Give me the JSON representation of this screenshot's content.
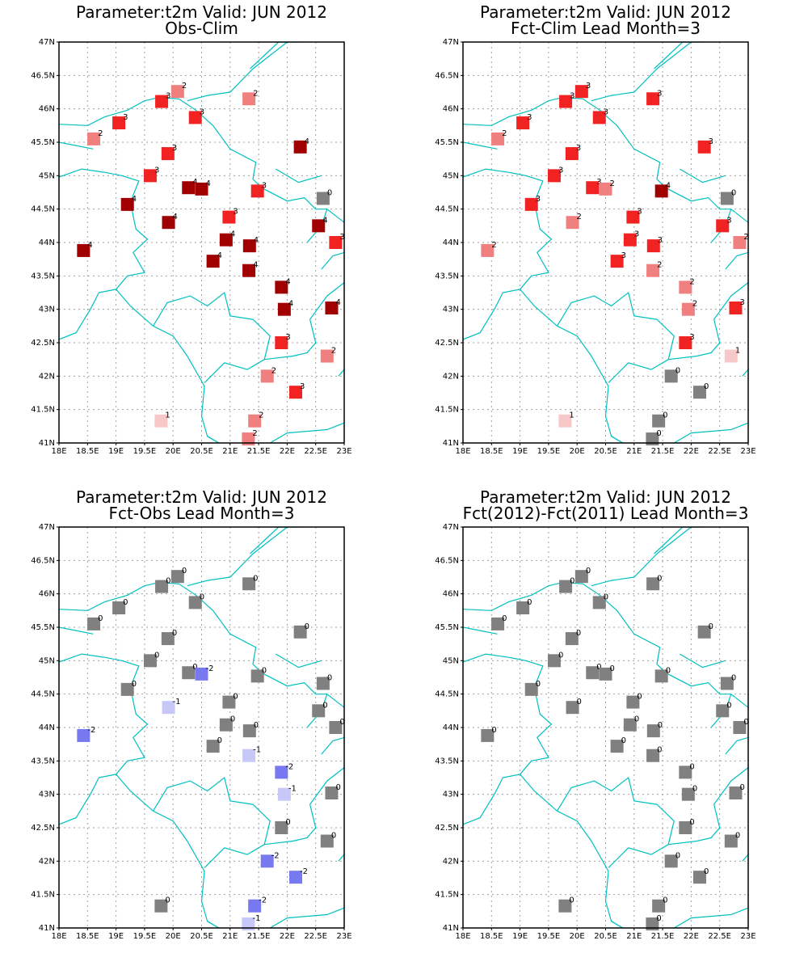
{
  "panels": [
    {
      "id": "obs-clim",
      "title_line1": "Parameter:t2m Valid: JUN 2012",
      "title_line2": "Obs-Clim",
      "stations": [
        {
          "lon": 18.43,
          "lat": 43.88,
          "v": 4
        },
        {
          "lon": 18.61,
          "lat": 45.55,
          "v": 2
        },
        {
          "lon": 19.05,
          "lat": 45.79,
          "v": 3
        },
        {
          "lon": 19.2,
          "lat": 44.57,
          "v": 4
        },
        {
          "lon": 19.6,
          "lat": 45.0,
          "v": 3
        },
        {
          "lon": 19.8,
          "lat": 46.11,
          "v": 3
        },
        {
          "lon": 19.79,
          "lat": 41.33,
          "v": 1
        },
        {
          "lon": 19.91,
          "lat": 45.33,
          "v": 3
        },
        {
          "lon": 19.92,
          "lat": 44.3,
          "v": 4
        },
        {
          "lon": 20.08,
          "lat": 46.26,
          "v": 2
        },
        {
          "lon": 20.27,
          "lat": 44.82,
          "v": 4
        },
        {
          "lon": 20.39,
          "lat": 45.87,
          "v": 3
        },
        {
          "lon": 20.5,
          "lat": 44.8,
          "v": 4
        },
        {
          "lon": 20.7,
          "lat": 43.72,
          "v": 4
        },
        {
          "lon": 20.93,
          "lat": 44.04,
          "v": 4
        },
        {
          "lon": 20.98,
          "lat": 44.38,
          "v": 3
        },
        {
          "lon": 21.33,
          "lat": 46.15,
          "v": 2
        },
        {
          "lon": 21.33,
          "lat": 43.58,
          "v": 4
        },
        {
          "lon": 21.32,
          "lat": 41.06,
          "v": 2
        },
        {
          "lon": 21.34,
          "lat": 43.95,
          "v": 4
        },
        {
          "lon": 21.43,
          "lat": 41.33,
          "v": 2
        },
        {
          "lon": 21.48,
          "lat": 44.77,
          "v": 3
        },
        {
          "lon": 21.65,
          "lat": 42.0,
          "v": 2
        },
        {
          "lon": 21.9,
          "lat": 42.5,
          "v": 3
        },
        {
          "lon": 21.9,
          "lat": 43.33,
          "v": 4
        },
        {
          "lon": 21.95,
          "lat": 43.0,
          "v": 4
        },
        {
          "lon": 22.15,
          "lat": 41.76,
          "v": 3
        },
        {
          "lon": 22.23,
          "lat": 45.43,
          "v": 4
        },
        {
          "lon": 22.55,
          "lat": 44.25,
          "v": 4
        },
        {
          "lon": 22.63,
          "lat": 44.66,
          "v": 0
        },
        {
          "lon": 22.7,
          "lat": 42.3,
          "v": 2
        },
        {
          "lon": 22.78,
          "lat": 43.02,
          "v": 4
        },
        {
          "lon": 22.85,
          "lat": 44.0,
          "v": 3
        }
      ]
    },
    {
      "id": "fct-clim",
      "title_line1": "Parameter:t2m Valid: JUN 2012",
      "title_line2": "Fct-Clim Lead Month=3",
      "stations": [
        {
          "lon": 18.43,
          "lat": 43.88,
          "v": 2
        },
        {
          "lon": 18.61,
          "lat": 45.55,
          "v": 2
        },
        {
          "lon": 19.05,
          "lat": 45.79,
          "v": 3
        },
        {
          "lon": 19.2,
          "lat": 44.57,
          "v": 3
        },
        {
          "lon": 19.6,
          "lat": 45.0,
          "v": 3
        },
        {
          "lon": 19.8,
          "lat": 46.11,
          "v": 3
        },
        {
          "lon": 19.79,
          "lat": 41.33,
          "v": 1
        },
        {
          "lon": 19.91,
          "lat": 45.33,
          "v": 3
        },
        {
          "lon": 19.92,
          "lat": 44.3,
          "v": 2
        },
        {
          "lon": 20.08,
          "lat": 46.26,
          "v": 3
        },
        {
          "lon": 20.27,
          "lat": 44.82,
          "v": 3
        },
        {
          "lon": 20.39,
          "lat": 45.87,
          "v": 3
        },
        {
          "lon": 20.5,
          "lat": 44.8,
          "v": 2
        },
        {
          "lon": 20.7,
          "lat": 43.72,
          "v": 3
        },
        {
          "lon": 20.93,
          "lat": 44.04,
          "v": 3
        },
        {
          "lon": 20.98,
          "lat": 44.38,
          "v": 3
        },
        {
          "lon": 21.33,
          "lat": 46.15,
          "v": 3
        },
        {
          "lon": 21.33,
          "lat": 43.58,
          "v": 2
        },
        {
          "lon": 21.32,
          "lat": 41.06,
          "v": 0
        },
        {
          "lon": 21.34,
          "lat": 43.95,
          "v": 3
        },
        {
          "lon": 21.43,
          "lat": 41.33,
          "v": 0
        },
        {
          "lon": 21.48,
          "lat": 44.77,
          "v": 4
        },
        {
          "lon": 21.65,
          "lat": 42.0,
          "v": 0
        },
        {
          "lon": 21.9,
          "lat": 42.5,
          "v": 3
        },
        {
          "lon": 21.9,
          "lat": 43.33,
          "v": 2
        },
        {
          "lon": 21.95,
          "lat": 43.0,
          "v": 2
        },
        {
          "lon": 22.15,
          "lat": 41.76,
          "v": 0
        },
        {
          "lon": 22.23,
          "lat": 45.43,
          "v": 3
        },
        {
          "lon": 22.55,
          "lat": 44.25,
          "v": 3
        },
        {
          "lon": 22.63,
          "lat": 44.66,
          "v": 0
        },
        {
          "lon": 22.7,
          "lat": 42.3,
          "v": 1
        },
        {
          "lon": 22.78,
          "lat": 43.02,
          "v": 3
        },
        {
          "lon": 22.85,
          "lat": 44.0,
          "v": 2
        }
      ]
    },
    {
      "id": "fct-obs",
      "title_line1": "Parameter:t2m Valid: JUN 2012",
      "title_line2": "Fct-Obs Lead Month=3",
      "stations": [
        {
          "lon": 18.43,
          "lat": 43.88,
          "v": -2
        },
        {
          "lon": 18.61,
          "lat": 45.55,
          "v": 0
        },
        {
          "lon": 19.05,
          "lat": 45.79,
          "v": 0
        },
        {
          "lon": 19.2,
          "lat": 44.57,
          "v": 0
        },
        {
          "lon": 19.6,
          "lat": 45.0,
          "v": 0
        },
        {
          "lon": 19.8,
          "lat": 46.11,
          "v": 0
        },
        {
          "lon": 19.79,
          "lat": 41.33,
          "v": 0
        },
        {
          "lon": 19.91,
          "lat": 45.33,
          "v": 0
        },
        {
          "lon": 19.92,
          "lat": 44.3,
          "v": -1
        },
        {
          "lon": 20.08,
          "lat": 46.26,
          "v": 0
        },
        {
          "lon": 20.27,
          "lat": 44.82,
          "v": 0
        },
        {
          "lon": 20.39,
          "lat": 45.87,
          "v": 0
        },
        {
          "lon": 20.5,
          "lat": 44.8,
          "v": -2
        },
        {
          "lon": 20.7,
          "lat": 43.72,
          "v": 0
        },
        {
          "lon": 20.93,
          "lat": 44.04,
          "v": 0
        },
        {
          "lon": 20.98,
          "lat": 44.38,
          "v": 0
        },
        {
          "lon": 21.33,
          "lat": 46.15,
          "v": 0
        },
        {
          "lon": 21.33,
          "lat": 43.58,
          "v": -1
        },
        {
          "lon": 21.32,
          "lat": 41.06,
          "v": -1
        },
        {
          "lon": 21.34,
          "lat": 43.95,
          "v": 0
        },
        {
          "lon": 21.43,
          "lat": 41.33,
          "v": -2
        },
        {
          "lon": 21.48,
          "lat": 44.77,
          "v": 0
        },
        {
          "lon": 21.65,
          "lat": 42.0,
          "v": -2
        },
        {
          "lon": 21.9,
          "lat": 42.5,
          "v": 0
        },
        {
          "lon": 21.9,
          "lat": 43.33,
          "v": -2
        },
        {
          "lon": 21.95,
          "lat": 43.0,
          "v": -1
        },
        {
          "lon": 22.15,
          "lat": 41.76,
          "v": -2
        },
        {
          "lon": 22.23,
          "lat": 45.43,
          "v": 0
        },
        {
          "lon": 22.55,
          "lat": 44.25,
          "v": 0
        },
        {
          "lon": 22.63,
          "lat": 44.66,
          "v": 0
        },
        {
          "lon": 22.7,
          "lat": 42.3,
          "v": 0
        },
        {
          "lon": 22.78,
          "lat": 43.02,
          "v": 0
        },
        {
          "lon": 22.85,
          "lat": 44.0,
          "v": 0
        }
      ]
    },
    {
      "id": "fct-diff",
      "title_line1": "Parameter:t2m Valid: JUN 2012",
      "title_line2": "Fct(2012)-Fct(2011) Lead Month=3",
      "stations": [
        {
          "lon": 18.43,
          "lat": 43.88,
          "v": 0
        },
        {
          "lon": 18.61,
          "lat": 45.55,
          "v": 0
        },
        {
          "lon": 19.05,
          "lat": 45.79,
          "v": 0
        },
        {
          "lon": 19.2,
          "lat": 44.57,
          "v": 0
        },
        {
          "lon": 19.6,
          "lat": 45.0,
          "v": 0
        },
        {
          "lon": 19.8,
          "lat": 46.11,
          "v": 0
        },
        {
          "lon": 19.79,
          "lat": 41.33,
          "v": 0
        },
        {
          "lon": 19.91,
          "lat": 45.33,
          "v": 0
        },
        {
          "lon": 19.92,
          "lat": 44.3,
          "v": 0
        },
        {
          "lon": 20.08,
          "lat": 46.26,
          "v": 0
        },
        {
          "lon": 20.27,
          "lat": 44.82,
          "v": 0
        },
        {
          "lon": 20.39,
          "lat": 45.87,
          "v": 0
        },
        {
          "lon": 20.5,
          "lat": 44.8,
          "v": 0
        },
        {
          "lon": 20.7,
          "lat": 43.72,
          "v": 0
        },
        {
          "lon": 20.93,
          "lat": 44.04,
          "v": 0
        },
        {
          "lon": 20.98,
          "lat": 44.38,
          "v": 0
        },
        {
          "lon": 21.33,
          "lat": 46.15,
          "v": 0
        },
        {
          "lon": 21.33,
          "lat": 43.58,
          "v": 0
        },
        {
          "lon": 21.32,
          "lat": 41.06,
          "v": 0
        },
        {
          "lon": 21.34,
          "lat": 43.95,
          "v": 0
        },
        {
          "lon": 21.43,
          "lat": 41.33,
          "v": 0
        },
        {
          "lon": 21.48,
          "lat": 44.77,
          "v": 0
        },
        {
          "lon": 21.65,
          "lat": 42.0,
          "v": 0
        },
        {
          "lon": 21.9,
          "lat": 42.5,
          "v": 0
        },
        {
          "lon": 21.9,
          "lat": 43.33,
          "v": 0
        },
        {
          "lon": 21.95,
          "lat": 43.0,
          "v": 0
        },
        {
          "lon": 22.15,
          "lat": 41.76,
          "v": 0
        },
        {
          "lon": 22.23,
          "lat": 45.43,
          "v": 0
        },
        {
          "lon": 22.55,
          "lat": 44.25,
          "v": 0
        },
        {
          "lon": 22.63,
          "lat": 44.66,
          "v": 0
        },
        {
          "lon": 22.7,
          "lat": 42.3,
          "v": 0
        },
        {
          "lon": 22.78,
          "lat": 43.02,
          "v": 0
        },
        {
          "lon": 22.85,
          "lat": 44.0,
          "v": 0
        }
      ]
    }
  ],
  "axes": {
    "lon_ticks": [
      "18E",
      "18.5E",
      "19E",
      "19.5E",
      "20E",
      "20.5E",
      "21E",
      "21.5E",
      "22E",
      "22.5E",
      "23E"
    ],
    "lat_ticks": [
      "41N",
      "41.5N",
      "42N",
      "42.5N",
      "43N",
      "43.5N",
      "44N",
      "44.5N",
      "45N",
      "45.5N",
      "46N",
      "46.5N",
      "47N"
    ],
    "lon_range": [
      18,
      23
    ],
    "lat_range": [
      41,
      47
    ],
    "grid": true
  },
  "colors": {
    "v4": "#a00000",
    "v3": "#f02222",
    "v2": "#f08080",
    "v1": "#f8c8c8",
    "v0": "#808080",
    "vm1": "#c8c8f8",
    "vm2": "#7878f0",
    "border": "#00c0c0",
    "grid": "#a0a0a0"
  }
}
